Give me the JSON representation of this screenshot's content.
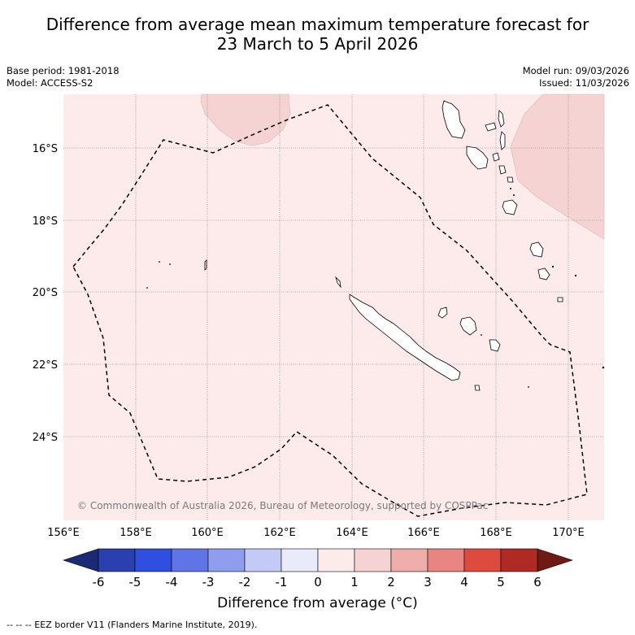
{
  "title": {
    "line1": "Difference from average mean maximum temperature forecast for",
    "line2": "23 March to 5 April 2026"
  },
  "meta_left": {
    "base_period": "Base period: 1981-2018",
    "model": "Model: ACCESS-S2"
  },
  "meta_right": {
    "model_run": "Model run: 09/03/2026",
    "issued": "Issued: 11/03/2026"
  },
  "map": {
    "copyright": "© Commonwealth of Australia 2026, Bureau of Meteorology, supported by COSPPac",
    "lon_labels": [
      "156°E",
      "158°E",
      "160°E",
      "162°E",
      "164°E",
      "166°E",
      "168°E",
      "170°E"
    ],
    "lat_labels": [
      "16°S",
      "18°S",
      "20°S",
      "22°S",
      "24°S"
    ],
    "background_color": "#fcebea"
  },
  "colorbar": {
    "label": "Difference from average (°C)",
    "ticks": [
      "-6",
      "-5",
      "-4",
      "-3",
      "-2",
      "-1",
      "0",
      "1",
      "2",
      "3",
      "4",
      "5",
      "6"
    ],
    "colors": [
      "#253594",
      "#2a3fb0",
      "#2f4fe0",
      "#5f75e6",
      "#8e9dee",
      "#c4caf6",
      "#e9ebfa",
      "#fcebea",
      "#f4d3d2",
      "#efada9",
      "#e88580",
      "#dd4a3e",
      "#b02a24",
      "#6f1a14"
    ],
    "low_arrow_color": "#1c2a75",
    "high_arrow_color": "#6f1a14"
  },
  "footer": {
    "legend": "-- -- -- EEZ border V11 (Flanders Marine Institute, 2019)."
  }
}
